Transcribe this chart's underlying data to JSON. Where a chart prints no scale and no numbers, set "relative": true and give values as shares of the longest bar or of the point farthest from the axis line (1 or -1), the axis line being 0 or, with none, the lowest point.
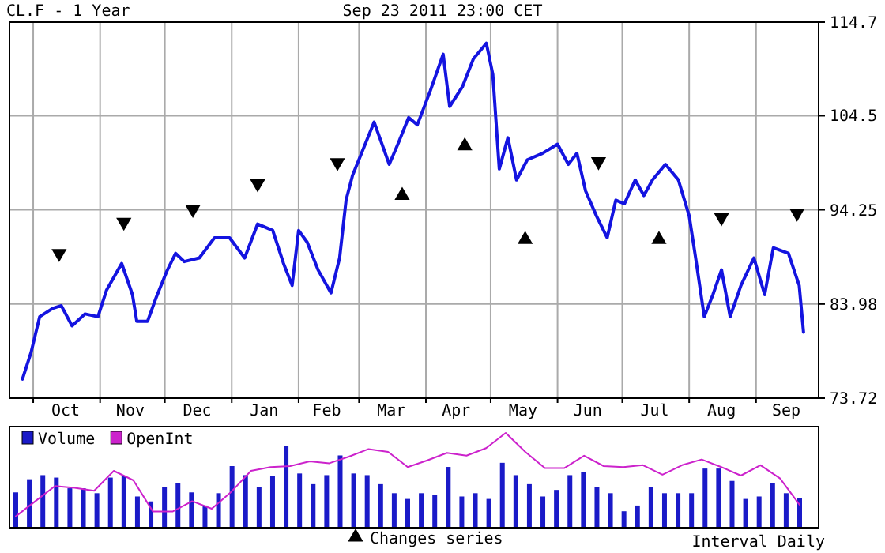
{
  "chart_data": [
    {
      "type": "line",
      "title": "CL.F - 1 Year",
      "subtitle": "Sep 23 2011 23:00 CET",
      "annotations": [
        "Interval Daily"
      ],
      "xlim": [
        "2010-09-20",
        "2011-09-30"
      ],
      "ylim": [
        73.72,
        114.7
      ],
      "yticks": [
        73.72,
        83.98,
        94.25,
        104.5,
        114.7
      ],
      "xticks": [
        {
          "value": "2010-10-01",
          "label": null
        },
        {
          "value": "2010-10-16",
          "label": "Oct"
        },
        {
          "value": "2010-11-01",
          "label": null
        },
        {
          "value": "2010-11-15",
          "label": "Nov"
        },
        {
          "value": "2010-12-01",
          "label": null
        },
        {
          "value": "2010-12-16",
          "label": "Dec"
        },
        {
          "value": "2011-01-01",
          "label": null
        },
        {
          "value": "2011-01-16",
          "label": "Jan"
        },
        {
          "value": "2011-02-01",
          "label": null
        },
        {
          "value": "2011-02-14",
          "label": "Feb"
        },
        {
          "value": "2011-03-01",
          "label": null
        },
        {
          "value": "2011-03-16",
          "label": "Mar"
        },
        {
          "value": "2011-04-01",
          "label": null
        },
        {
          "value": "2011-04-15",
          "label": "Apr"
        },
        {
          "value": "2011-05-01",
          "label": null
        },
        {
          "value": "2011-05-16",
          "label": "May"
        },
        {
          "value": "2011-06-01",
          "label": null
        },
        {
          "value": "2011-06-15",
          "label": "Jun"
        },
        {
          "value": "2011-07-01",
          "label": null
        },
        {
          "value": "2011-07-16",
          "label": "Jul"
        },
        {
          "value": "2011-08-01",
          "label": null
        },
        {
          "value": "2011-08-16",
          "label": "Aug"
        },
        {
          "value": "2011-09-01",
          "label": null
        },
        {
          "value": "2011-09-15",
          "label": "Sep"
        }
      ],
      "grid": true,
      "legend": "bottom",
      "series": [
        {
          "color": "#1414e0",
          "x": [
            "2010-09-26",
            "2010-09-30",
            "2010-10-04",
            "2010-10-10",
            "2010-10-14",
            "2010-10-19",
            "2010-10-25",
            "2010-10-31",
            "2010-11-04",
            "2010-11-11",
            "2010-11-16",
            "2010-11-18",
            "2010-11-23",
            "2010-11-27",
            "2010-12-02",
            "2010-12-06",
            "2010-12-10",
            "2010-12-17",
            "2010-12-24",
            "2010-12-31",
            "2011-01-07",
            "2011-01-13",
            "2011-01-20",
            "2011-01-25",
            "2011-01-29",
            "2011-02-01",
            "2011-02-05",
            "2011-02-10",
            "2011-02-16",
            "2011-02-20",
            "2011-02-23",
            "2011-02-26",
            "2011-03-03",
            "2011-03-08",
            "2011-03-15",
            "2011-03-19",
            "2011-03-24",
            "2011-03-28",
            "2011-04-03",
            "2011-04-09",
            "2011-04-12",
            "2011-04-18",
            "2011-04-23",
            "2011-04-29",
            "2011-05-02",
            "2011-05-05",
            "2011-05-09",
            "2011-05-13",
            "2011-05-18",
            "2011-05-25",
            "2011-06-01",
            "2011-06-06",
            "2011-06-10",
            "2011-06-14",
            "2011-06-19",
            "2011-06-24",
            "2011-06-28",
            "2011-07-02",
            "2011-07-07",
            "2011-07-11",
            "2011-07-15",
            "2011-07-21",
            "2011-07-27",
            "2011-08-01",
            "2011-08-04",
            "2011-08-08",
            "2011-08-12",
            "2011-08-16",
            "2011-08-20",
            "2011-08-25",
            "2011-08-31",
            "2011-09-05",
            "2011-09-09",
            "2011-09-16",
            "2011-09-21",
            "2011-09-23"
          ],
          "values": [
            75.8,
            78.7,
            82.6,
            83.5,
            83.8,
            81.6,
            82.9,
            82.6,
            85.5,
            88.4,
            85.0,
            82.1,
            82.1,
            84.7,
            87.6,
            89.5,
            88.6,
            89.0,
            91.2,
            91.2,
            89.0,
            92.7,
            92.0,
            88.4,
            86.0,
            92.0,
            90.7,
            87.7,
            85.2,
            89.0,
            95.3,
            98.0,
            100.9,
            103.8,
            99.2,
            101.4,
            104.3,
            103.5,
            107.2,
            111.2,
            105.5,
            107.7,
            110.7,
            112.4,
            109.0,
            98.7,
            102.1,
            97.5,
            99.7,
            100.4,
            101.4,
            99.2,
            100.4,
            96.3,
            93.6,
            91.2,
            95.3,
            94.9,
            97.5,
            95.8,
            97.5,
            99.2,
            97.5,
            93.6,
            89.0,
            82.6,
            85.0,
            87.7,
            82.6,
            86.0,
            89.0,
            85.0,
            90.1,
            89.5,
            86.0,
            80.9
          ]
        },
        {
          "type": "scatter",
          "marker": "triangle",
          "color": "#000000",
          "x": [
            "2010-10-13",
            "2010-11-12",
            "2010-12-14",
            "2011-01-13",
            "2011-02-19",
            "2011-06-20",
            "2011-08-16",
            "2011-09-20"
          ],
          "values": [
            89.5,
            92.9,
            94.3,
            97.1,
            99.4,
            99.5,
            93.4,
            93.9
          ]
        },
        {
          "type": "scatter",
          "name": "Changes series",
          "marker": "triangle",
          "color": "#000000",
          "x": [
            "2011-03-21",
            "2011-04-19",
            "2011-05-17",
            "2011-07-18"
          ],
          "values": [
            95.8,
            101.2,
            91.0,
            91.0
          ]
        }
      ]
    },
    {
      "type": "bar",
      "relative": true,
      "legend": "top left",
      "categories": [
        null,
        null,
        null,
        null,
        null,
        null,
        null,
        null,
        null,
        null,
        null,
        null,
        null,
        null,
        null,
        null,
        null,
        null,
        null,
        null,
        null,
        null,
        null,
        null,
        null,
        null,
        null,
        null,
        null,
        null,
        null,
        null,
        null,
        null,
        null,
        null,
        null,
        null,
        null,
        null,
        null,
        null,
        null,
        null,
        null,
        null,
        null,
        null,
        null,
        null,
        null,
        null,
        null,
        null,
        null,
        null,
        null,
        null,
        null
      ],
      "series": [
        {
          "name": "Volume",
          "color": "#1a1ac8",
          "values": [
            0.43,
            0.59,
            0.64,
            0.61,
            0.48,
            0.48,
            0.42,
            0.61,
            0.63,
            0.38,
            0.32,
            0.5,
            0.54,
            0.43,
            0.27,
            0.42,
            0.75,
            0.64,
            0.5,
            0.63,
            1,
            0.66,
            0.53,
            0.64,
            0.88,
            0.66,
            0.64,
            0.53,
            0.42,
            0.35,
            0.42,
            0.4,
            0.74,
            0.38,
            0.42,
            0.35,
            0.79,
            0.64,
            0.53,
            0.38,
            0.46,
            0.64,
            0.68,
            0.5,
            0.42,
            0.2,
            0.27,
            0.5,
            0.42,
            0.42,
            0.42,
            0.72,
            0.72,
            0.57,
            0.35,
            0.38,
            0.54,
            0.42,
            0.36
          ]
        }
      ]
    },
    {
      "type": "line",
      "relative": true,
      "legend": "top left",
      "categories": [
        null,
        null,
        null,
        null,
        null,
        null,
        null,
        null,
        null,
        null,
        null,
        null,
        null,
        null,
        null,
        null,
        null,
        null,
        null,
        null,
        null,
        null,
        null,
        null,
        null,
        null,
        null,
        null,
        null,
        null,
        null,
        null,
        null,
        null,
        null,
        null,
        null,
        null,
        null,
        null,
        null
      ],
      "series": [
        {
          "name": "OpenInt",
          "color": "#cc22cc",
          "values": [
            0.12,
            0.28,
            0.44,
            0.42,
            0.39,
            0.6,
            0.5,
            0.17,
            0.17,
            0.28,
            0.2,
            0.38,
            0.6,
            0.64,
            0.65,
            0.7,
            0.68,
            0.75,
            0.83,
            0.8,
            0.64,
            0.71,
            0.79,
            0.76,
            0.84,
            1,
            0.8,
            0.63,
            0.63,
            0.76,
            0.65,
            0.64,
            0.66,
            0.56,
            0.66,
            0.72,
            0.64,
            0.55,
            0.66,
            0.52,
            0.24
          ]
        }
      ]
    }
  ]
}
